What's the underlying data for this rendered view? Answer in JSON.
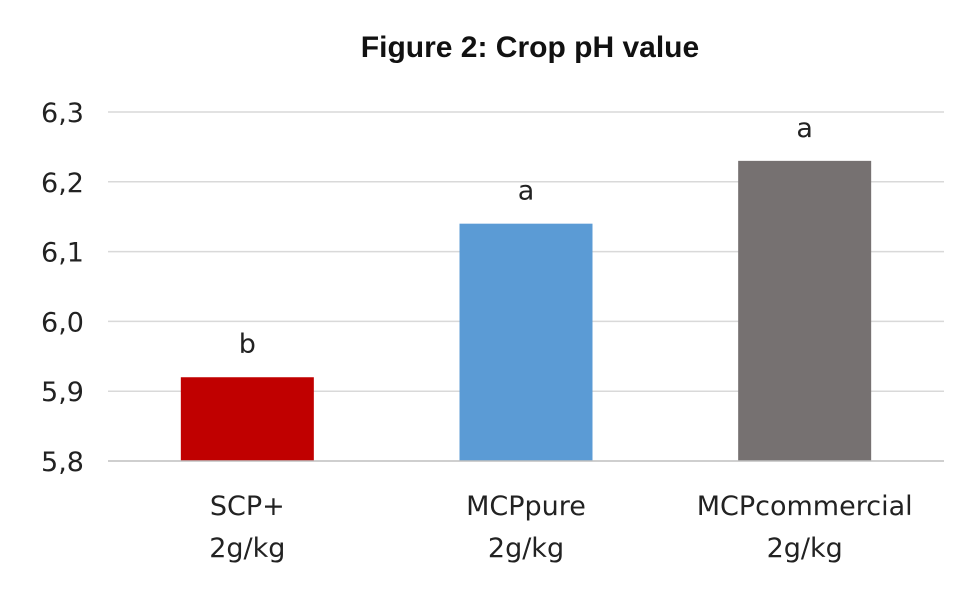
{
  "chart_data": {
    "type": "bar",
    "title": "Figure 2: Crop pH value",
    "categories": [
      [
        "SCP+",
        "2g/kg"
      ],
      [
        "MCPpure",
        "2g/kg"
      ],
      [
        "MCPcommercial",
        "2g/kg"
      ]
    ],
    "values": [
      5.92,
      6.14,
      6.23
    ],
    "data_labels": [
      "b",
      "a",
      "a"
    ],
    "colors": [
      "#c00000",
      "#5b9bd5",
      "#767171"
    ],
    "ylim": [
      5.8,
      6.3
    ],
    "yticks": [
      5.8,
      5.9,
      6.0,
      6.1,
      6.2,
      6.3
    ],
    "ytick_labels": [
      "5,8",
      "5,9",
      "6,0",
      "6,1",
      "6,2",
      "6,3"
    ],
    "xlabel": "",
    "ylabel": "",
    "grid": true,
    "legend": "none"
  }
}
